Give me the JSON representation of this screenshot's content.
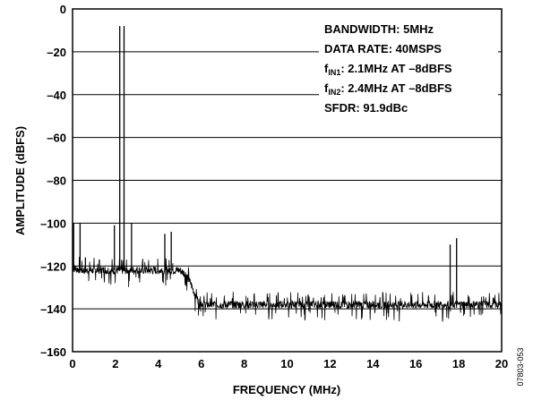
{
  "chart_data": {
    "type": "line",
    "title": "",
    "xlabel": "FREQUENCY (MHz)",
    "ylabel": "AMPLITUDE (dBFS)",
    "xlim": [
      0,
      20
    ],
    "ylim": [
      -160,
      0
    ],
    "x_ticks": [
      0,
      2,
      4,
      6,
      8,
      10,
      12,
      14,
      16,
      18,
      20
    ],
    "y_ticks": [
      0,
      -20,
      -40,
      -60,
      -80,
      -100,
      -120,
      -140,
      -160
    ],
    "y_tick_labels": [
      "0",
      "–20",
      "–40",
      "–60",
      "–80",
      "–100",
      "–120",
      "–140",
      "–160"
    ],
    "grid": "horizontal",
    "series": [
      {
        "noise_floor": [
          [
            0,
            -121
          ],
          [
            0.5,
            -122
          ],
          [
            4.5,
            -122
          ],
          [
            5.0,
            -122
          ],
          [
            5.3,
            -124
          ],
          [
            5.5,
            -128
          ],
          [
            5.7,
            -133
          ],
          [
            5.9,
            -137
          ],
          [
            6.2,
            -138
          ],
          [
            20,
            -138
          ]
        ],
        "spurs": [
          [
            0.05,
            -100
          ],
          [
            0.35,
            -100
          ],
          [
            0.6,
            -116
          ],
          [
            1.25,
            -117
          ],
          [
            1.95,
            -101
          ],
          [
            2.2,
            -8
          ],
          [
            2.4,
            -8
          ],
          [
            2.75,
            -100
          ],
          [
            4.3,
            -105
          ],
          [
            4.6,
            -104
          ],
          [
            17.6,
            -110
          ],
          [
            17.9,
            -107
          ]
        ]
      }
    ],
    "annotations": [
      {
        "main": "BANDWIDTH: 5MHz"
      },
      {
        "main": "DATA RATE: 40MSPS"
      },
      {
        "prefix": "f",
        "sub": "IN1",
        "main": ": 2.1MHz AT –8dBFS"
      },
      {
        "prefix": "f",
        "sub": "IN2",
        "main": ": 2.4MHz AT –8dBFS"
      },
      {
        "main": "SFDR: 91.9dBc"
      }
    ]
  },
  "figure_id": "07803-053"
}
